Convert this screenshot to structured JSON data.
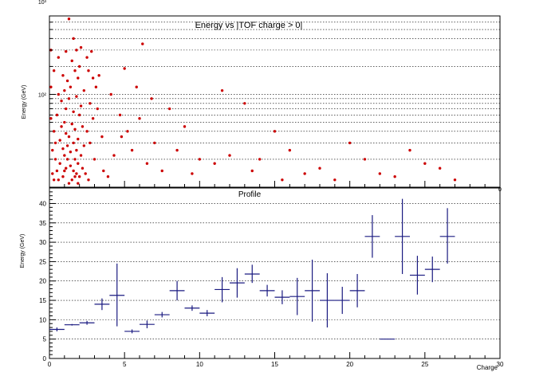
{
  "chart_data": [
    {
      "type": "scatter",
      "title": "Energy vs |TOF charge > 0|",
      "ylabel": "Energy (GeV)",
      "xlabel": "",
      "xlim": [
        0,
        30
      ],
      "ylim": [
        10,
        700
      ],
      "y_scale": "log",
      "y_tick_labels": [
        "10²",
        "10³"
      ],
      "x_tick_labels": [
        "0"
      ],
      "grid": "horizontal dotted",
      "marker_color": "#cc0000",
      "points": [
        [
          0.1,
          300
        ],
        [
          0.1,
          120
        ],
        [
          0.1,
          55
        ],
        [
          0.2,
          25
        ],
        [
          0.2,
          14
        ],
        [
          0.3,
          40
        ],
        [
          0.3,
          180
        ],
        [
          0.3,
          12
        ],
        [
          0.4,
          30
        ],
        [
          0.4,
          20
        ],
        [
          0.5,
          15
        ],
        [
          0.5,
          60
        ],
        [
          0.6,
          100
        ],
        [
          0.6,
          12
        ],
        [
          0.6,
          250
        ],
        [
          0.7,
          32
        ],
        [
          0.7,
          18
        ],
        [
          0.8,
          85
        ],
        [
          0.8,
          45
        ],
        [
          0.9,
          160
        ],
        [
          0.9,
          26
        ],
        [
          0.9,
          13
        ],
        [
          1.0,
          110
        ],
        [
          1.0,
          50
        ],
        [
          1.0,
          22
        ],
        [
          1.0,
          15
        ],
        [
          1.1,
          70
        ],
        [
          1.1,
          290
        ],
        [
          1.1,
          38
        ],
        [
          1.1,
          16
        ],
        [
          1.2,
          28
        ],
        [
          1.2,
          140
        ],
        [
          1.2,
          20
        ],
        [
          1.3,
          11
        ],
        [
          1.3,
          650
        ],
        [
          1.3,
          35
        ],
        [
          1.3,
          90
        ],
        [
          1.4,
          17
        ],
        [
          1.4,
          24
        ],
        [
          1.4,
          120
        ],
        [
          1.5,
          12
        ],
        [
          1.5,
          48
        ],
        [
          1.5,
          230
        ],
        [
          1.6,
          400
        ],
        [
          1.6,
          15
        ],
        [
          1.6,
          30
        ],
        [
          1.6,
          65
        ],
        [
          1.7,
          13
        ],
        [
          1.7,
          20
        ],
        [
          1.7,
          180
        ],
        [
          1.7,
          42
        ],
        [
          1.8,
          25
        ],
        [
          1.8,
          95
        ],
        [
          1.8,
          14
        ],
        [
          1.8,
          300
        ],
        [
          1.9,
          11
        ],
        [
          1.9,
          18
        ],
        [
          1.9,
          33
        ],
        [
          1.9,
          150
        ],
        [
          2.0,
          60
        ],
        [
          2.0,
          200
        ],
        [
          2.0,
          13
        ],
        [
          2.1,
          22
        ],
        [
          2.1,
          75
        ],
        [
          2.1,
          320
        ],
        [
          2.2,
          16
        ],
        [
          2.2,
          45
        ],
        [
          2.3,
          110
        ],
        [
          2.3,
          28
        ],
        [
          2.4,
          850
        ],
        [
          2.4,
          14
        ],
        [
          2.5,
          250
        ],
        [
          2.5,
          40
        ],
        [
          2.6,
          180
        ],
        [
          2.6,
          12
        ],
        [
          2.7,
          80
        ],
        [
          2.7,
          30
        ],
        [
          2.8,
          290
        ],
        [
          2.9,
          150
        ],
        [
          2.9,
          55
        ],
        [
          3.0,
          20
        ],
        [
          3.1,
          120
        ],
        [
          3.2,
          70
        ],
        [
          3.3,
          160
        ],
        [
          3.5,
          35
        ],
        [
          3.6,
          15
        ],
        [
          3.9,
          13
        ],
        [
          4.1,
          100
        ],
        [
          4.3,
          22
        ],
        [
          4.5,
          850
        ],
        [
          4.7,
          60
        ],
        [
          4.8,
          35
        ],
        [
          5.0,
          190
        ],
        [
          5.2,
          40
        ],
        [
          5.5,
          25
        ],
        [
          5.8,
          120
        ],
        [
          6.0,
          55
        ],
        [
          6.2,
          350
        ],
        [
          6.5,
          18
        ],
        [
          6.8,
          90
        ],
        [
          7.0,
          30
        ],
        [
          7.5,
          15
        ],
        [
          8.0,
          70
        ],
        [
          8.5,
          25
        ],
        [
          9.0,
          45
        ],
        [
          9.5,
          14
        ],
        [
          10.0,
          20
        ],
        [
          11.0,
          18
        ],
        [
          11.5,
          110
        ],
        [
          12.0,
          22
        ],
        [
          13.0,
          80
        ],
        [
          13.5,
          15
        ],
        [
          14.0,
          20
        ],
        [
          15.0,
          40
        ],
        [
          15.5,
          12
        ],
        [
          16.0,
          25
        ],
        [
          17.0,
          14
        ],
        [
          18.0,
          16
        ],
        [
          19.0,
          12
        ],
        [
          20.0,
          30
        ],
        [
          21.0,
          20
        ],
        [
          22.0,
          14
        ],
        [
          23.0,
          13
        ],
        [
          24.0,
          25
        ],
        [
          25.0,
          18
        ],
        [
          26.0,
          16
        ],
        [
          27.0,
          12
        ]
      ]
    },
    {
      "type": "scatter",
      "title": "Profile",
      "xlabel": "Charge",
      "ylabel": "Energy (GeV)",
      "xlim": [
        0,
        30
      ],
      "ylim": [
        0,
        44
      ],
      "x_ticks": [
        0,
        5,
        10,
        15,
        20,
        25,
        30
      ],
      "y_ticks": [
        0,
        5,
        10,
        15,
        20,
        25,
        30,
        35,
        40
      ],
      "grid": "horizontal dotted",
      "marker_color": "#1a1a80",
      "points": [
        {
          "x": 0.5,
          "xerr": 0.5,
          "y": 7.5,
          "ylo": 7.0,
          "yhi": 8.0
        },
        {
          "x": 1.5,
          "xerr": 0.5,
          "y": 8.7,
          "ylo": 8.5,
          "yhi": 8.9
        },
        {
          "x": 2.5,
          "xerr": 0.5,
          "y": 9.2,
          "ylo": 8.7,
          "yhi": 9.7
        },
        {
          "x": 3.5,
          "xerr": 0.5,
          "y": 14.0,
          "ylo": 12.5,
          "yhi": 15.5
        },
        {
          "x": 4.5,
          "xerr": 0.5,
          "y": 16.3,
          "ylo": 8.3,
          "yhi": 24.5
        },
        {
          "x": 5.5,
          "xerr": 0.5,
          "y": 7.0,
          "ylo": 6.5,
          "yhi": 7.5
        },
        {
          "x": 6.5,
          "xerr": 0.5,
          "y": 8.8,
          "ylo": 7.8,
          "yhi": 9.8
        },
        {
          "x": 7.5,
          "xerr": 0.5,
          "y": 11.3,
          "ylo": 10.6,
          "yhi": 12.0
        },
        {
          "x": 8.5,
          "xerr": 0.5,
          "y": 17.5,
          "ylo": 15.0,
          "yhi": 20.0
        },
        {
          "x": 9.5,
          "xerr": 0.5,
          "y": 13.0,
          "ylo": 12.3,
          "yhi": 13.7
        },
        {
          "x": 10.5,
          "xerr": 0.5,
          "y": 11.7,
          "ylo": 10.9,
          "yhi": 12.5
        },
        {
          "x": 11.5,
          "xerr": 0.5,
          "y": 17.8,
          "ylo": 14.5,
          "yhi": 21.0
        },
        {
          "x": 12.5,
          "xerr": 0.5,
          "y": 19.5,
          "ylo": 15.7,
          "yhi": 23.3
        },
        {
          "x": 13.5,
          "xerr": 0.5,
          "y": 21.8,
          "ylo": 19.5,
          "yhi": 24.2
        },
        {
          "x": 14.5,
          "xerr": 0.5,
          "y": 17.5,
          "ylo": 16.0,
          "yhi": 19.0
        },
        {
          "x": 15.5,
          "xerr": 0.5,
          "y": 15.8,
          "ylo": 14.0,
          "yhi": 17.6
        },
        {
          "x": 16.5,
          "xerr": 0.5,
          "y": 16.0,
          "ylo": 11.2,
          "yhi": 20.8
        },
        {
          "x": 17.5,
          "xerr": 0.5,
          "y": 17.5,
          "ylo": 9.5,
          "yhi": 25.5
        },
        {
          "x": 18.5,
          "xerr": 0.5,
          "y": 15.0,
          "ylo": 8.0,
          "yhi": 22.0
        },
        {
          "x": 19.5,
          "xerr": 0.5,
          "y": 15.0,
          "ylo": 11.5,
          "yhi": 18.5
        },
        {
          "x": 20.5,
          "xerr": 0.5,
          "y": 17.5,
          "ylo": 13.2,
          "yhi": 21.8
        },
        {
          "x": 21.5,
          "xerr": 0.5,
          "y": 31.5,
          "ylo": 26.0,
          "yhi": 37.0
        },
        {
          "x": 22.5,
          "xerr": 0.5,
          "y": 5.0,
          "ylo": 5.0,
          "yhi": 5.0
        },
        {
          "x": 23.5,
          "xerr": 0.5,
          "y": 31.5,
          "ylo": 21.8,
          "yhi": 41.2
        },
        {
          "x": 24.5,
          "xerr": 0.5,
          "y": 21.5,
          "ylo": 16.5,
          "yhi": 26.5
        },
        {
          "x": 25.5,
          "xerr": 0.5,
          "y": 23.0,
          "ylo": 19.7,
          "yhi": 26.3
        },
        {
          "x": 26.5,
          "xerr": 0.5,
          "y": 31.5,
          "ylo": 24.5,
          "yhi": 38.8
        }
      ]
    }
  ]
}
